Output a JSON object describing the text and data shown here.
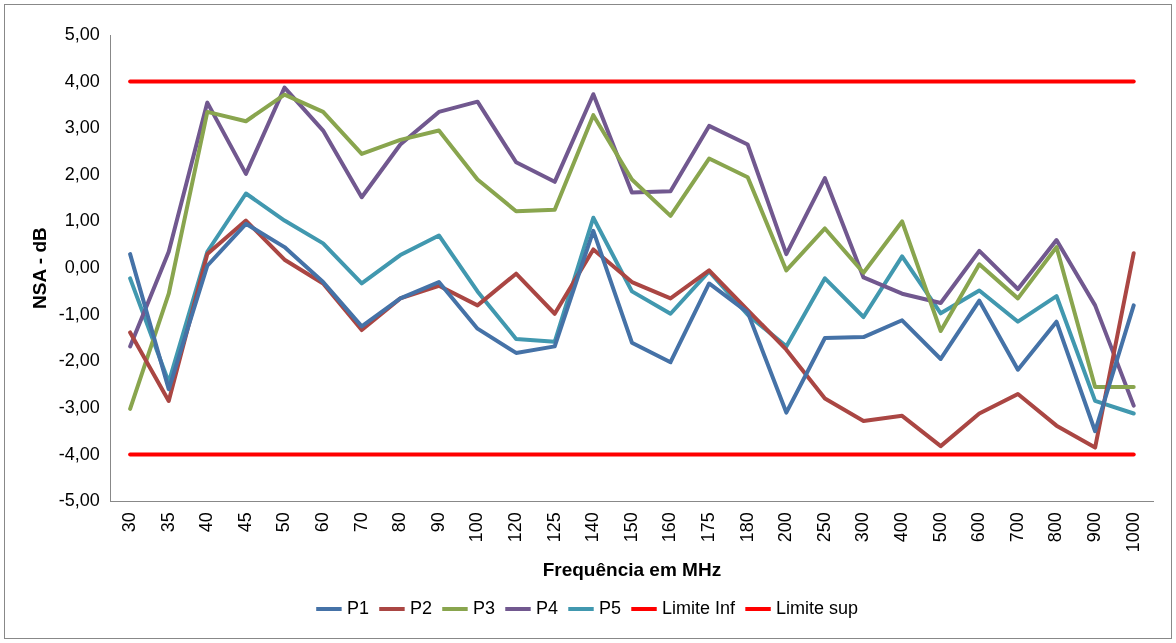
{
  "chart_data": {
    "type": "line",
    "xlabel": "Frequência em MHz",
    "ylabel": "NSA - dB",
    "categories": [
      "30",
      "35",
      "40",
      "45",
      "50",
      "60",
      "70",
      "80",
      "90",
      "100",
      "120",
      "125",
      "140",
      "150",
      "160",
      "175",
      "180",
      "200",
      "250",
      "300",
      "400",
      "500",
      "600",
      "700",
      "800",
      "900",
      "1000"
    ],
    "ylim": [
      -5,
      5
    ],
    "yticks": [
      {
        "value": -5,
        "label": "-5,00"
      },
      {
        "value": -4,
        "label": "-4,00"
      },
      {
        "value": -3,
        "label": "-3,00"
      },
      {
        "value": -2,
        "label": "-2,00"
      },
      {
        "value": -1,
        "label": "-1,00"
      },
      {
        "value": 0,
        "label": "0,00"
      },
      {
        "value": 1,
        "label": "1,00"
      },
      {
        "value": 2,
        "label": "2,00"
      },
      {
        "value": 3,
        "label": "3,00"
      },
      {
        "value": 4,
        "label": "4,00"
      },
      {
        "value": 5,
        "label": "5,00"
      }
    ],
    "grid": false,
    "legend": "bottom",
    "marker": "none",
    "line_style": "solid",
    "series": [
      {
        "name": "P1",
        "color": "#4572a7",
        "values": [
          0.3,
          -2.6,
          0.05,
          0.95,
          0.45,
          -0.3,
          -1.25,
          -0.65,
          -0.3,
          -1.3,
          -1.82,
          -1.68,
          0.8,
          -1.6,
          -2.02,
          -0.33,
          -0.95,
          -3.1,
          -1.5,
          -1.48,
          -1.12,
          -1.95,
          -0.7,
          -2.18,
          -1.15,
          -3.5,
          -0.8
        ]
      },
      {
        "name": "P2",
        "color": "#aa4643",
        "values": [
          -1.38,
          -2.85,
          0.3,
          1.02,
          0.18,
          -0.33,
          -1.33,
          -0.65,
          -0.38,
          -0.8,
          -0.12,
          -0.98,
          0.4,
          -0.3,
          -0.65,
          -0.05,
          -0.9,
          -1.75,
          -2.8,
          -3.28,
          -3.17,
          -3.82,
          -3.12,
          -2.7,
          -3.38,
          -3.85,
          0.32
        ]
      },
      {
        "name": "P3",
        "color": "#89a54e",
        "values": [
          -3.02,
          -0.55,
          3.35,
          3.15,
          3.72,
          3.35,
          2.45,
          2.75,
          2.95,
          1.9,
          1.22,
          1.25,
          3.28,
          1.9,
          1.12,
          2.35,
          1.95,
          -0.05,
          0.85,
          -0.1,
          1.0,
          -1.35,
          0.08,
          -0.65,
          0.45,
          -2.55,
          -2.55
        ]
      },
      {
        "name": "P4",
        "color": "#71588f",
        "values": [
          -1.68,
          0.35,
          3.55,
          2.02,
          3.87,
          2.95,
          1.52,
          2.65,
          3.35,
          3.57,
          2.27,
          1.85,
          3.73,
          1.62,
          1.65,
          3.05,
          2.65,
          0.3,
          1.93,
          -0.2,
          -0.55,
          -0.75,
          0.37,
          -0.45,
          0.6,
          -0.8,
          -2.95
        ]
      },
      {
        "name": "P5",
        "color": "#4198af",
        "values": [
          -0.22,
          -2.45,
          0.35,
          1.6,
          1.02,
          0.53,
          -0.33,
          0.28,
          0.7,
          -0.5,
          -1.52,
          -1.58,
          1.08,
          -0.5,
          -0.98,
          -0.07,
          -1.0,
          -1.68,
          -0.22,
          -1.05,
          0.25,
          -0.97,
          -0.48,
          -1.15,
          -0.6,
          -2.85,
          -3.12
        ]
      },
      {
        "name": "Limite Inf",
        "color": "#ff0000",
        "values": [
          -4,
          -4,
          -4,
          -4,
          -4,
          -4,
          -4,
          -4,
          -4,
          -4,
          -4,
          -4,
          -4,
          -4,
          -4,
          -4,
          -4,
          -4,
          -4,
          -4,
          -4,
          -4,
          -4,
          -4,
          -4,
          -4,
          -4
        ]
      },
      {
        "name": "Limite sup",
        "color": "#ff0000",
        "values": [
          4,
          4,
          4,
          4,
          4,
          4,
          4,
          4,
          4,
          4,
          4,
          4,
          4,
          4,
          4,
          4,
          4,
          4,
          4,
          4,
          4,
          4,
          4,
          4,
          4,
          4,
          4
        ]
      }
    ]
  }
}
